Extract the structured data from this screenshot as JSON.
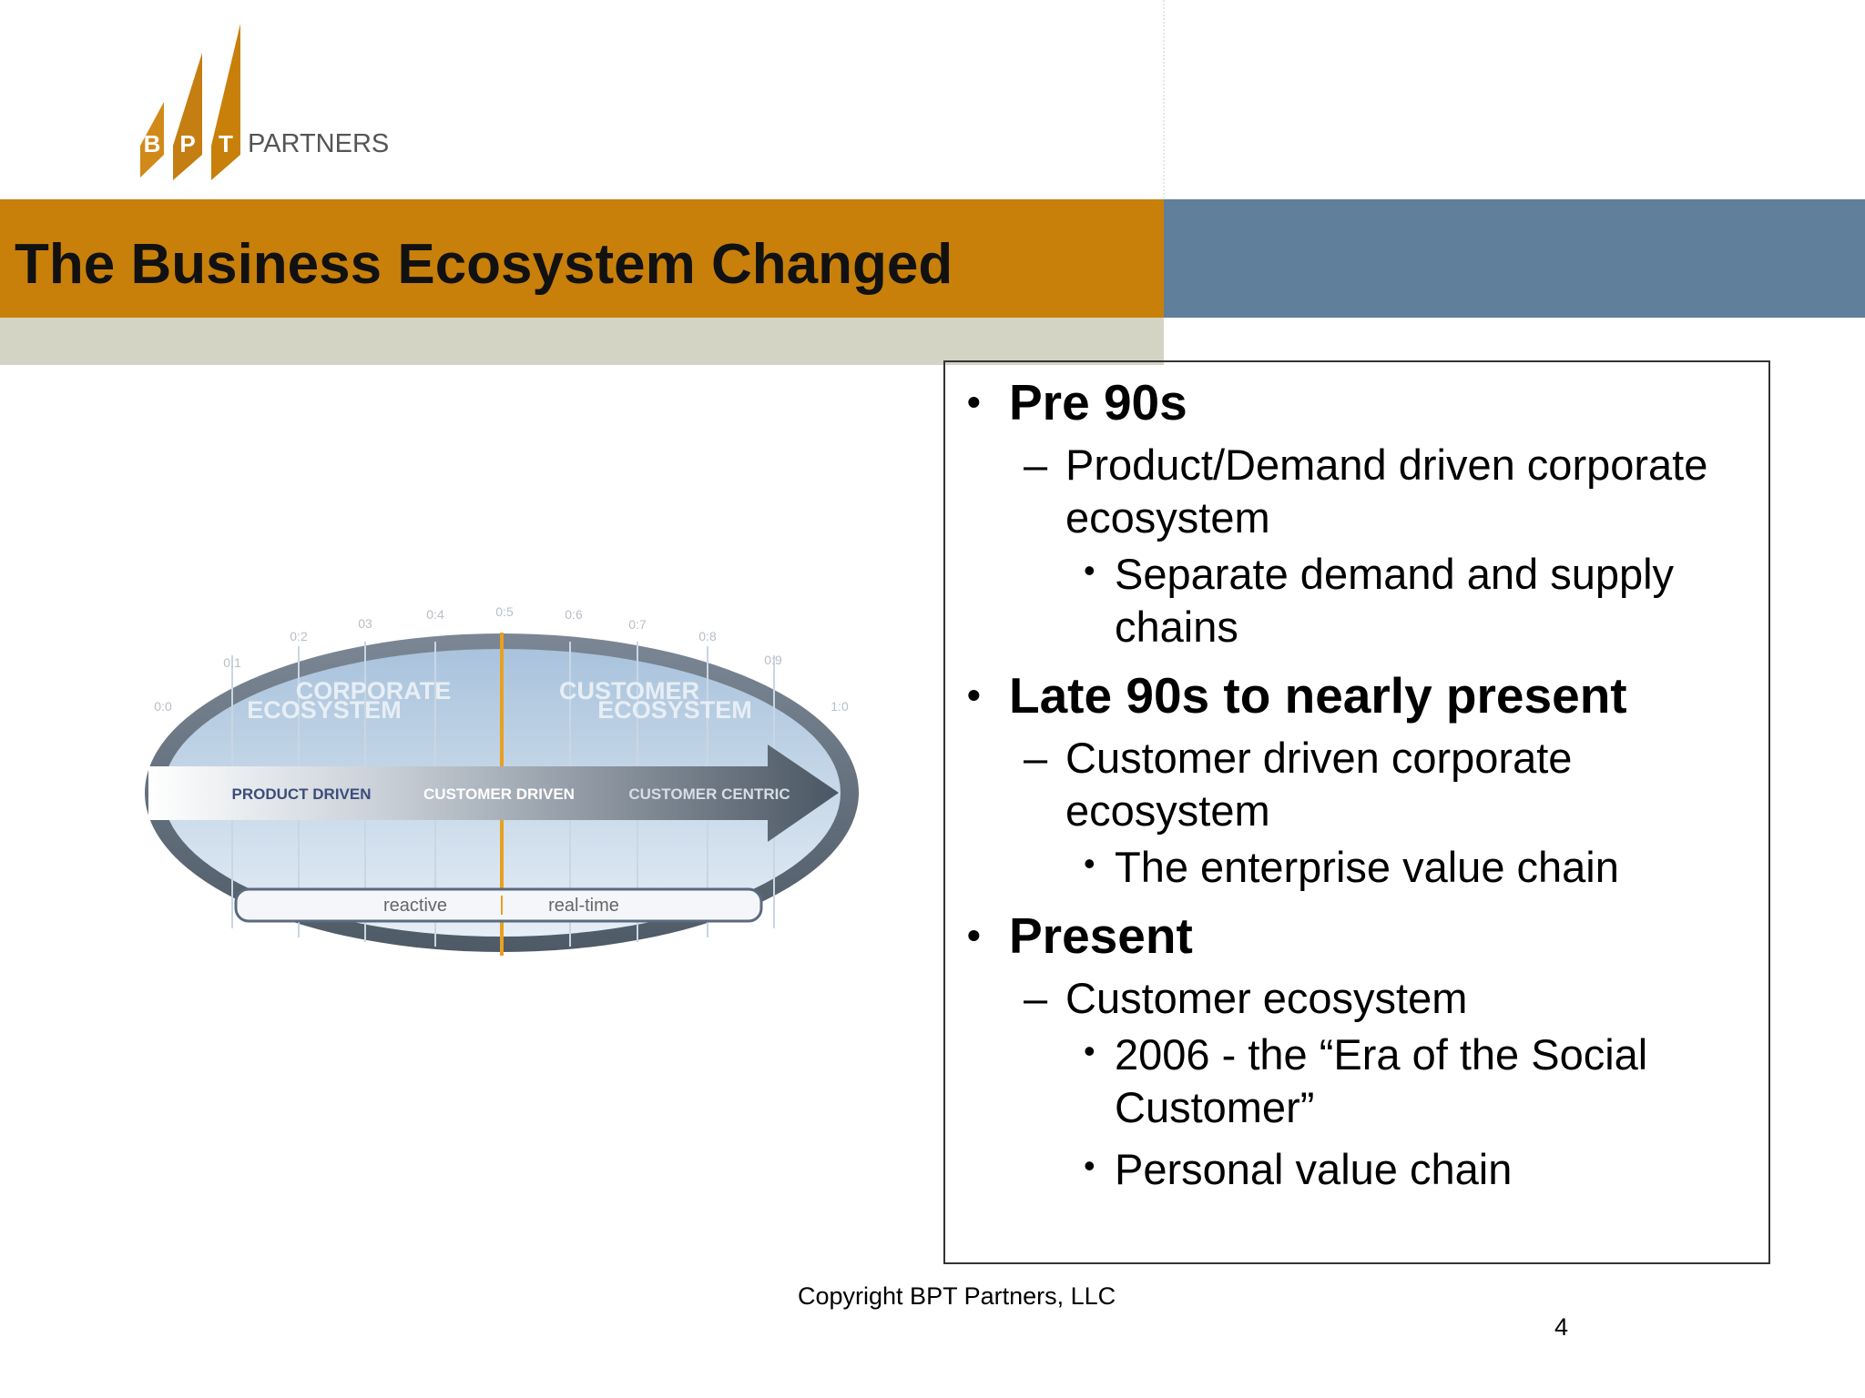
{
  "logo": {
    "letters": [
      "B",
      "P",
      "T"
    ],
    "name": "PARTNERS"
  },
  "header": {
    "title": "The Business Ecosystem Changed"
  },
  "diagram": {
    "scale": [
      "0:0",
      "0:1",
      "0:2",
      "03",
      "0:4",
      "0:5",
      "0:6",
      "0:7",
      "0:8",
      "0:9",
      "1:0"
    ],
    "regions": [
      [
        "CORPORATE",
        "ECOSYSTEM"
      ],
      [
        "CUSTOMER",
        "ECOSYSTEM"
      ]
    ],
    "stages": [
      "PRODUCT DRIVEN",
      "CUSTOMER DRIVEN",
      "CUSTOMER CENTRIC"
    ],
    "modes": [
      "reactive",
      "real-time"
    ]
  },
  "bullets": [
    {
      "text": "Pre 90s",
      "children": [
        {
          "text": "Product/Demand driven corporate ecosystem",
          "children": [
            "Separate demand and supply chains"
          ]
        }
      ]
    },
    {
      "text": "Late 90s to nearly present",
      "children": [
        {
          "text": "Customer driven corporate ecosystem",
          "children": [
            "The enterprise value chain"
          ]
        }
      ]
    },
    {
      "text": "Present",
      "children": [
        {
          "text": "Customer ecosystem",
          "children": [
            "2006 - the “Era of the Social Customer”",
            "Personal value chain"
          ]
        }
      ]
    }
  ],
  "footer": {
    "copyright": "Copyright BPT Partners, LLC",
    "page": 4
  }
}
